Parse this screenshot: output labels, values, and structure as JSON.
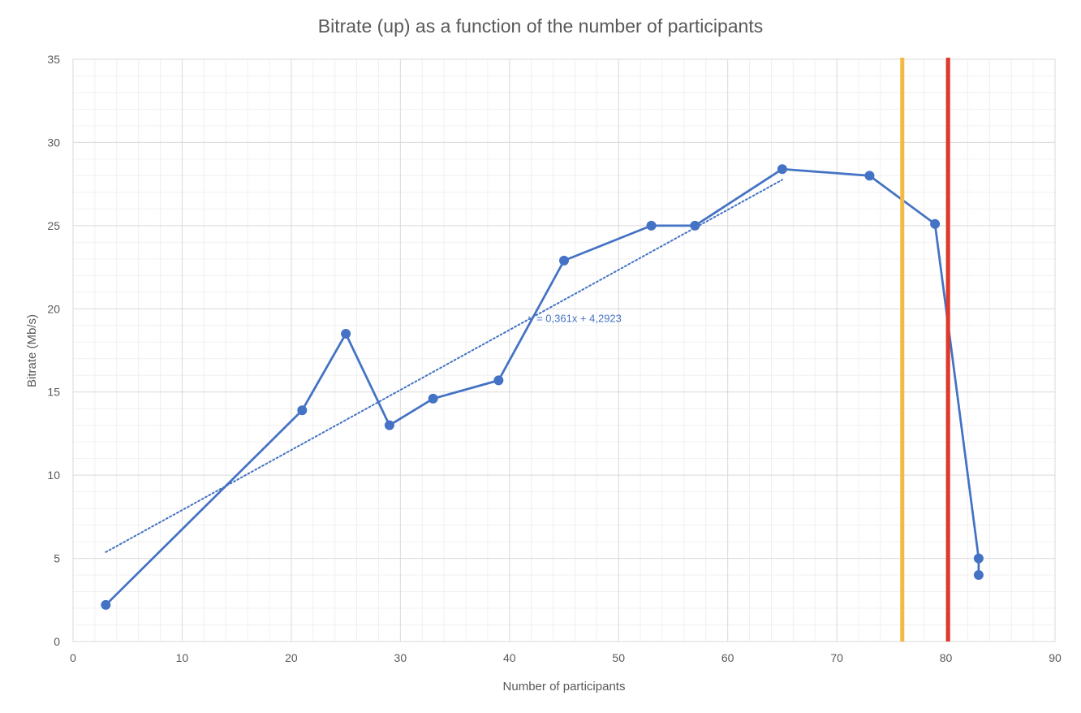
{
  "chart_data": {
    "type": "scatter",
    "title": "Bitrate (up) as a function of the number of participants",
    "xlabel": "Number of participants",
    "ylabel": "Bitrate (Mb/s)",
    "xlim": [
      0,
      90
    ],
    "ylim": [
      0,
      35
    ],
    "x_ticks": [
      0,
      10,
      20,
      30,
      40,
      50,
      60,
      70,
      80,
      90
    ],
    "y_ticks": [
      0,
      5,
      10,
      15,
      20,
      25,
      30,
      35
    ],
    "grid": true,
    "legend": "none",
    "series": [
      {
        "color": "#4472C4",
        "x": [
          3,
          21,
          25,
          29,
          33,
          39,
          45,
          53,
          57,
          65,
          73,
          79,
          83,
          83
        ],
        "y": [
          2.2,
          13.9,
          18.5,
          13.0,
          14.6,
          15.7,
          22.9,
          25.0,
          25.0,
          28.4,
          28.0,
          25.1,
          5.0,
          4.0
        ]
      }
    ],
    "trendline": {
      "color": "#4472C4",
      "slope": 0.361,
      "intercept": 4.2923,
      "x_range": [
        3,
        65
      ],
      "equation": "y = 0,361x + 4,2923",
      "label_x": 46,
      "label_y": 19.2
    },
    "vertical_lines": [
      {
        "x": 76,
        "color": "#F4B942"
      },
      {
        "x": 80.2,
        "color": "#E0392B"
      }
    ]
  }
}
